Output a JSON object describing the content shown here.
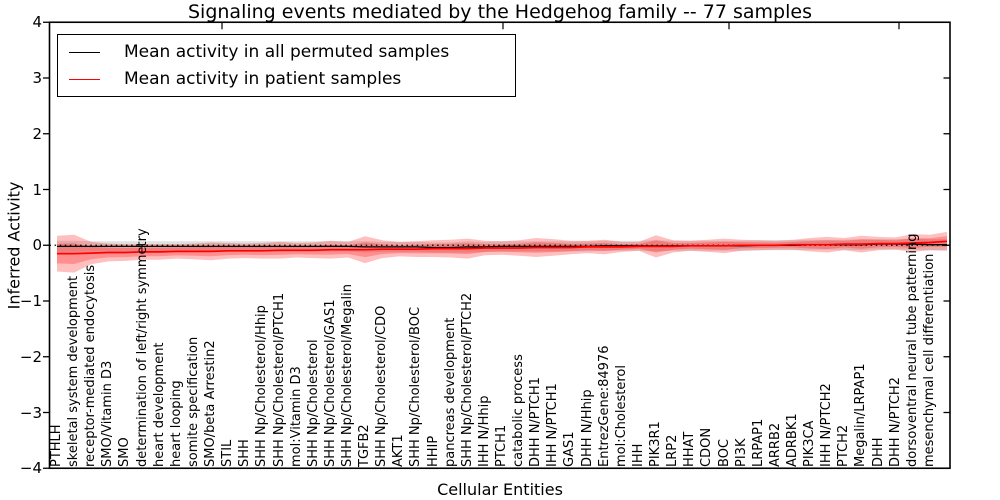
{
  "chart_data": {
    "type": "line",
    "title": "Signaling events mediated by the Hedgehog family -- 77 samples",
    "xlabel": "Cellular Entities",
    "ylabel": "Inferred Activity",
    "ylim": [
      -4,
      4
    ],
    "y_ticks": [
      4,
      3,
      2,
      1,
      0,
      -1,
      -2,
      -3,
      -4
    ],
    "grid": false,
    "legend_position": "upper left",
    "zero_line": true,
    "background_color": "#ffffff",
    "axis_color": "#000000",
    "categories": [
      "PTHLH",
      "skeletal system development",
      "receptor-mediated endocytosis",
      "SMO/Vitamin D3",
      "SMO",
      "determination of left/right symmetry",
      "heart development",
      "heart looping",
      "somite specification",
      "SMO/beta Arrestin2",
      "STIL",
      "SHH",
      "SHH Np/Cholesterol/Hhip",
      "SHH Np/Cholesterol/PTCH1",
      "mol:Vitamin D3",
      "SHH Np/Cholesterol",
      "SHH Np/Cholesterol/GAS1",
      "SHH Np/Cholesterol/Megalin",
      "TGFB2",
      "SHH Np/Cholesterol/CDO",
      "AKT1",
      "SHH Np/Cholesterol/BOC",
      "HHIP",
      "pancreas development",
      "SHH Np/Cholesterol/PTCH2",
      "IHH N/Hhip",
      "PTCH1",
      "catabolic process",
      "DHH N/PTCH1",
      "IHH N/PTCH1",
      "GAS1",
      "DHH N/Hhip",
      "EntrezGene:84976",
      "mol:Cholesterol",
      "IHH",
      "PIK3R1",
      "LRP2",
      "HHAT",
      "CDON",
      "BOC",
      "PI3K",
      "LRPAP1",
      "ARRB2",
      "ADRBK1",
      "PIK3CA",
      "IHH N/PTCH2",
      "PTCH2",
      "Megalin/LRPAP1",
      "DHH",
      "DHH N/PTCH2",
      "dorsoventral neural tube patterning",
      "mesenchymal cell differentiation",
      ""
    ],
    "series": [
      {
        "name": "Mean activity in all permuted samples",
        "color": "#000000",
        "band_color": "rgba(0,0,0,0.12)",
        "values": [
          -0.02,
          -0.02,
          -0.02,
          -0.02,
          -0.02,
          -0.02,
          -0.02,
          -0.02,
          -0.02,
          -0.02,
          -0.02,
          -0.02,
          -0.02,
          -0.02,
          -0.02,
          -0.02,
          -0.02,
          -0.02,
          -0.03,
          -0.03,
          -0.03,
          -0.03,
          -0.04,
          -0.04,
          -0.03,
          -0.03,
          -0.02,
          -0.02,
          -0.02,
          -0.02,
          -0.02,
          -0.02,
          -0.01,
          -0.01,
          -0.01,
          -0.01,
          -0.01,
          -0.01,
          -0.01,
          -0.01,
          -0.01,
          0,
          0,
          0,
          0.01,
          0.01,
          0.01,
          0.01,
          0.02,
          0.02,
          0.02,
          0.01,
          0.01
        ],
        "band_halfwidth": [
          0.1,
          0.1,
          0.09,
          0.09,
          0.09,
          0.09,
          0.09,
          0.09,
          0.09,
          0.09,
          0.09,
          0.09,
          0.09,
          0.09,
          0.09,
          0.09,
          0.09,
          0.09,
          0.1,
          0.09,
          0.09,
          0.09,
          0.09,
          0.09,
          0.1,
          0.09,
          0.09,
          0.09,
          0.09,
          0.09,
          0.09,
          0.09,
          0.09,
          0.09,
          0.09,
          0.1,
          0.09,
          0.09,
          0.09,
          0.09,
          0.09,
          0.09,
          0.09,
          0.09,
          0.09,
          0.09,
          0.09,
          0.1,
          0.09,
          0.09,
          0.1,
          0.1,
          0.1
        ]
      },
      {
        "name": "Mean activity in patient samples",
        "color": "#ff0000",
        "band_color": "rgba(255,0,0,0.25)",
        "inner_band_ratio": 0.55,
        "values": [
          -0.15,
          -0.15,
          -0.14,
          -0.13,
          -0.13,
          -0.12,
          -0.12,
          -0.11,
          -0.11,
          -0.11,
          -0.1,
          -0.1,
          -0.1,
          -0.09,
          -0.09,
          -0.09,
          -0.08,
          -0.08,
          -0.08,
          -0.07,
          -0.07,
          -0.07,
          -0.06,
          -0.06,
          -0.06,
          -0.05,
          -0.05,
          -0.05,
          -0.04,
          -0.04,
          -0.04,
          -0.03,
          -0.03,
          -0.03,
          -0.02,
          -0.02,
          -0.02,
          -0.01,
          -0.01,
          -0.01,
          0,
          0,
          0,
          0.01,
          0.01,
          0.01,
          0.02,
          0.02,
          0.03,
          0.03,
          0.04,
          0.05,
          0.07
        ],
        "band_halfwidth": [
          0.32,
          0.34,
          0.2,
          0.16,
          0.15,
          0.14,
          0.14,
          0.13,
          0.14,
          0.16,
          0.14,
          0.13,
          0.14,
          0.15,
          0.13,
          0.14,
          0.16,
          0.14,
          0.24,
          0.16,
          0.13,
          0.14,
          0.15,
          0.16,
          0.18,
          0.13,
          0.12,
          0.14,
          0.17,
          0.15,
          0.12,
          0.11,
          0.13,
          0.09,
          0.08,
          0.2,
          0.11,
          0.09,
          0.11,
          0.13,
          0.1,
          0.09,
          0.08,
          0.09,
          0.12,
          0.14,
          0.11,
          0.15,
          0.12,
          0.11,
          0.16,
          0.14,
          0.17
        ]
      }
    ]
  }
}
